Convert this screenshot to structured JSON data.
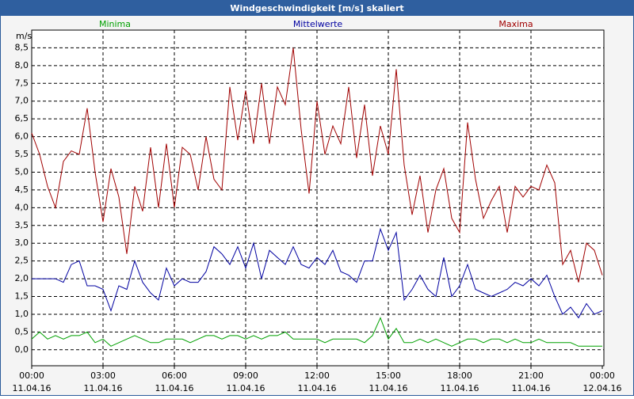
{
  "chart_data": {
    "type": "line",
    "title": "Windgeschwindigkeit [m/s] skaliert",
    "y_label": "m/s",
    "x": [
      0,
      20,
      40,
      60,
      80,
      100,
      120,
      140,
      160,
      180,
      200,
      220,
      240,
      260,
      280,
      300,
      320,
      340,
      360,
      380,
      400,
      420,
      440,
      460,
      480,
      500,
      520,
      540,
      560,
      580,
      600,
      620,
      640,
      660,
      680,
      700,
      720,
      740,
      760,
      780,
      800,
      820,
      840,
      860,
      880,
      900,
      920,
      940,
      960,
      980,
      1000,
      1020,
      1040,
      1060,
      1080,
      1100,
      1120,
      1140,
      1160,
      1180,
      1200,
      1220,
      1240,
      1260,
      1280,
      1300,
      1320,
      1340,
      1360,
      1380,
      1400,
      1420,
      1440
    ],
    "xlim": [
      0,
      1440
    ],
    "xticks": [
      {
        "value": 0,
        "label": "00:00"
      },
      {
        "value": 180,
        "label": "03:00"
      },
      {
        "value": 360,
        "label": "06:00"
      },
      {
        "value": 540,
        "label": "09:00"
      },
      {
        "value": 720,
        "label": "12:00"
      },
      {
        "value": 900,
        "label": "15:00"
      },
      {
        "value": 1080,
        "label": "18:00"
      },
      {
        "value": 1260,
        "label": "21:00"
      },
      {
        "value": 1440,
        "label": "00:00"
      }
    ],
    "xtick_dates": [
      "11.04.16",
      "11.04.16",
      "11.04.16",
      "11.04.16",
      "11.04.16",
      "11.04.16",
      "11.04.16",
      "11.04.16",
      "12.04.16"
    ],
    "ylim": [
      -0.45,
      9
    ],
    "yticks": [
      {
        "value": 0,
        "label": "0,0"
      },
      {
        "value": 0.5,
        "label": "0,5"
      },
      {
        "value": 1,
        "label": "1,0"
      },
      {
        "value": 1.5,
        "label": "1,5"
      },
      {
        "value": 2,
        "label": "2,0"
      },
      {
        "value": 2.5,
        "label": "2,5"
      },
      {
        "value": 3,
        "label": "3,0"
      },
      {
        "value": 3.5,
        "label": "3,5"
      },
      {
        "value": 4,
        "label": "4,0"
      },
      {
        "value": 4.5,
        "label": "4,5"
      },
      {
        "value": 5,
        "label": "5,0"
      },
      {
        "value": 5.5,
        "label": "5,5"
      },
      {
        "value": 6,
        "label": "6,0"
      },
      {
        "value": 6.5,
        "label": "6,5"
      },
      {
        "value": 7,
        "label": "7,0"
      },
      {
        "value": 7.5,
        "label": "7,5"
      },
      {
        "value": 8,
        "label": "8,0"
      },
      {
        "value": 8.5,
        "label": "8,5"
      }
    ],
    "grid": true,
    "series": [
      {
        "name": "Minima",
        "color": "#00a000",
        "values": [
          0.3,
          0.5,
          0.3,
          0.4,
          0.3,
          0.4,
          0.4,
          0.5,
          0.2,
          0.3,
          0.1,
          0.2,
          0.3,
          0.4,
          0.3,
          0.2,
          0.2,
          0.3,
          0.3,
          0.3,
          0.2,
          0.3,
          0.4,
          0.4,
          0.3,
          0.4,
          0.4,
          0.3,
          0.4,
          0.3,
          0.4,
          0.4,
          0.5,
          0.3,
          0.3,
          0.3,
          0.3,
          0.2,
          0.3,
          0.3,
          0.3,
          0.3,
          0.2,
          0.4,
          0.9,
          0.3,
          0.6,
          0.2,
          0.2,
          0.3,
          0.2,
          0.3,
          0.2,
          0.1,
          0.2,
          0.3,
          0.3,
          0.2,
          0.3,
          0.3,
          0.2,
          0.3,
          0.2,
          0.2,
          0.3,
          0.2,
          0.2,
          0.2,
          0.2,
          0.1,
          0.1,
          0.1,
          0.1
        ]
      },
      {
        "name": "Mittelwerte",
        "color": "#0000a0",
        "values": [
          2.0,
          2.0,
          2.0,
          2.0,
          1.9,
          2.4,
          2.5,
          1.8,
          1.8,
          1.7,
          1.1,
          1.8,
          1.7,
          2.5,
          1.9,
          1.6,
          1.4,
          2.3,
          1.8,
          2.0,
          1.9,
          1.9,
          2.2,
          2.9,
          2.7,
          2.4,
          2.9,
          2.3,
          3.0,
          2.0,
          2.8,
          2.6,
          2.4,
          2.9,
          2.4,
          2.3,
          2.6,
          2.4,
          2.8,
          2.2,
          2.1,
          1.9,
          2.5,
          2.5,
          3.4,
          2.8,
          3.3,
          1.4,
          1.7,
          2.1,
          1.7,
          1.5,
          2.6,
          1.5,
          1.8,
          2.4,
          1.7,
          1.6,
          1.5,
          1.6,
          1.7,
          1.9,
          1.8,
          2.0,
          1.8,
          2.1,
          1.5,
          1.0,
          1.2,
          0.9,
          1.3,
          1.0,
          1.1
        ]
      },
      {
        "name": "Maxima",
        "color": "#a00000",
        "values": [
          6.1,
          5.5,
          4.6,
          4.0,
          5.3,
          5.6,
          5.5,
          6.8,
          5.0,
          3.6,
          5.1,
          4.3,
          2.7,
          4.6,
          3.9,
          5.7,
          4.0,
          5.8,
          4.0,
          5.7,
          5.5,
          4.5,
          6.0,
          4.8,
          4.5,
          7.4,
          5.9,
          7.3,
          5.8,
          7.5,
          5.8,
          7.4,
          6.9,
          8.5,
          6.2,
          4.4,
          7.0,
          5.5,
          6.3,
          5.8,
          7.4,
          5.4,
          6.9,
          4.9,
          6.3,
          5.5,
          7.9,
          5.2,
          3.8,
          4.9,
          3.3,
          4.5,
          5.1,
          3.7,
          3.3,
          6.4,
          4.8,
          3.7,
          4.2,
          4.6,
          3.3,
          4.6,
          4.3,
          4.6,
          4.5,
          5.2,
          4.7,
          2.4,
          2.8,
          1.9,
          3.0,
          2.8,
          2.1
        ]
      }
    ]
  }
}
